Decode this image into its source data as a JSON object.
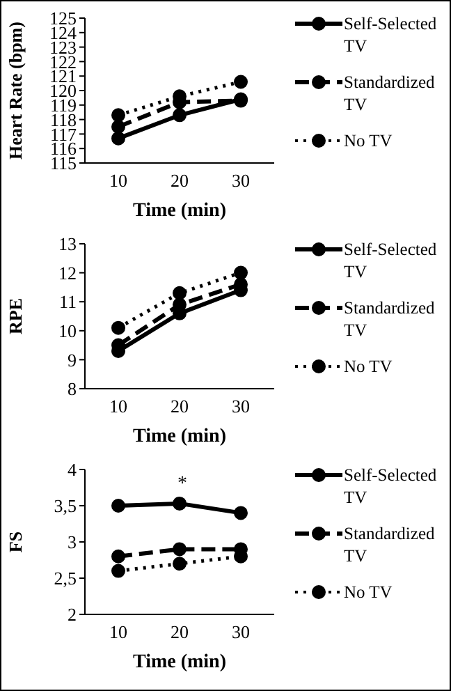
{
  "chart_data": [
    {
      "type": "line",
      "ylabel": "Heart Rate (bpm)",
      "xlabel": "Time (min)",
      "categories": [
        "10",
        "20",
        "30"
      ],
      "series": [
        {
          "name": "Self-Selected TV",
          "color": "#000000",
          "line_style": "solid",
          "values": [
            116.7,
            118.3,
            119.4
          ]
        },
        {
          "name": "Standardized TV",
          "color": "#000000",
          "line_style": "dashed",
          "values": [
            117.5,
            119.2,
            119.3
          ]
        },
        {
          "name": "No TV",
          "color": "#000000",
          "line_style": "dotted",
          "values": [
            118.3,
            119.6,
            120.6
          ]
        }
      ],
      "ylim": [
        115,
        125
      ],
      "yticks": [
        115,
        116,
        117,
        118,
        119,
        120,
        121,
        122,
        123,
        124,
        125
      ],
      "grid": false,
      "legend": "right",
      "marker": "circle"
    },
    {
      "type": "line",
      "ylabel": "RPE",
      "xlabel": "Time (min)",
      "categories": [
        "10",
        "20",
        "30"
      ],
      "series": [
        {
          "name": "Self-Selected TV",
          "color": "#000000",
          "line_style": "solid",
          "values": [
            9.3,
            10.6,
            11.4
          ]
        },
        {
          "name": "Standardized TV",
          "color": "#000000",
          "line_style": "dashed",
          "values": [
            9.5,
            10.9,
            11.6
          ]
        },
        {
          "name": "No TV",
          "color": "#000000",
          "line_style": "dotted",
          "values": [
            10.1,
            11.3,
            12.0
          ]
        }
      ],
      "ylim": [
        8,
        13
      ],
      "yticks": [
        8,
        9,
        10,
        11,
        12,
        13
      ],
      "grid": false,
      "legend": "right",
      "marker": "circle"
    },
    {
      "type": "line",
      "ylabel": "FS",
      "xlabel": "Time (min)",
      "categories": [
        "10",
        "20",
        "30"
      ],
      "series": [
        {
          "name": "Self-Selected TV",
          "color": "#000000",
          "line_style": "solid",
          "values": [
            3.5,
            3.53,
            3.4
          ]
        },
        {
          "name": "Standardized TV",
          "color": "#000000",
          "line_style": "dashed",
          "values": [
            2.8,
            2.9,
            2.9
          ]
        },
        {
          "name": "No TV",
          "color": "#000000",
          "line_style": "dotted",
          "values": [
            2.6,
            2.7,
            2.8
          ]
        }
      ],
      "ylim": [
        2,
        4
      ],
      "yticks": [
        2,
        {
          "value": 2.5,
          "label": "2,5"
        },
        3,
        {
          "value": 3.5,
          "label": "3,5"
        },
        4
      ],
      "grid": false,
      "legend": "right",
      "marker": "circle",
      "annotations": [
        "*"
      ]
    }
  ]
}
